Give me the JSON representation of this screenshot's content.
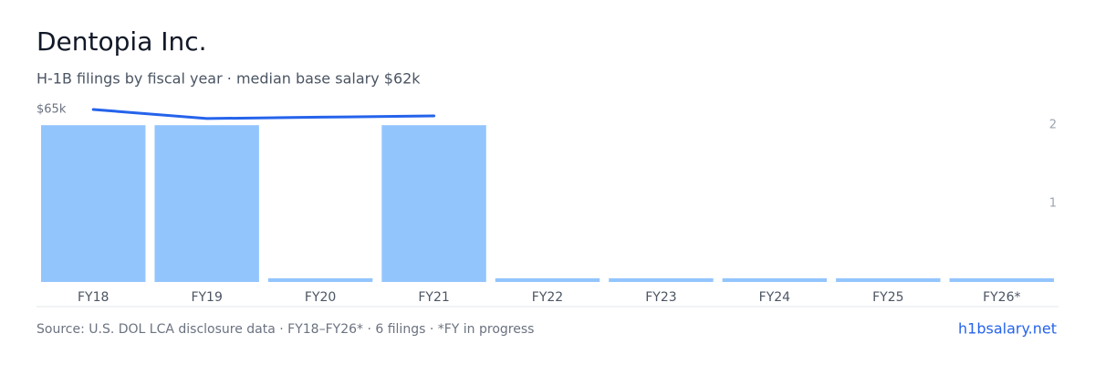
{
  "chart_data": {
    "type": "bar",
    "title": "Dentopia Inc.",
    "subtitle": "H-1B filings by fiscal year · median base salary $62k",
    "categories": [
      "FY18",
      "FY19",
      "FY20",
      "FY21",
      "FY22",
      "FY23",
      "FY24",
      "FY25",
      "FY26*"
    ],
    "series": [
      {
        "type": "bar",
        "color": "#93c5fd",
        "values": [
          2,
          2,
          0,
          2,
          0,
          0,
          0,
          0,
          0
        ]
      },
      {
        "type": "line",
        "color": "#2563eb",
        "axis": "y2",
        "values": [
          65000,
          61600,
          62100,
          62600,
          null,
          null,
          null,
          null,
          null
        ]
      }
    ],
    "ylim": [
      0,
      2.2
    ],
    "yticks": [
      1,
      2
    ],
    "y2lim": [
      0,
      65000
    ],
    "y2ticks": [
      {
        "value": 65000,
        "label": "$65k"
      }
    ],
    "source": "Source: U.S. DOL LCA disclosure data · FY18–FY26* · 6 filings · *FY in progress",
    "link": "h1bsalary.net"
  }
}
